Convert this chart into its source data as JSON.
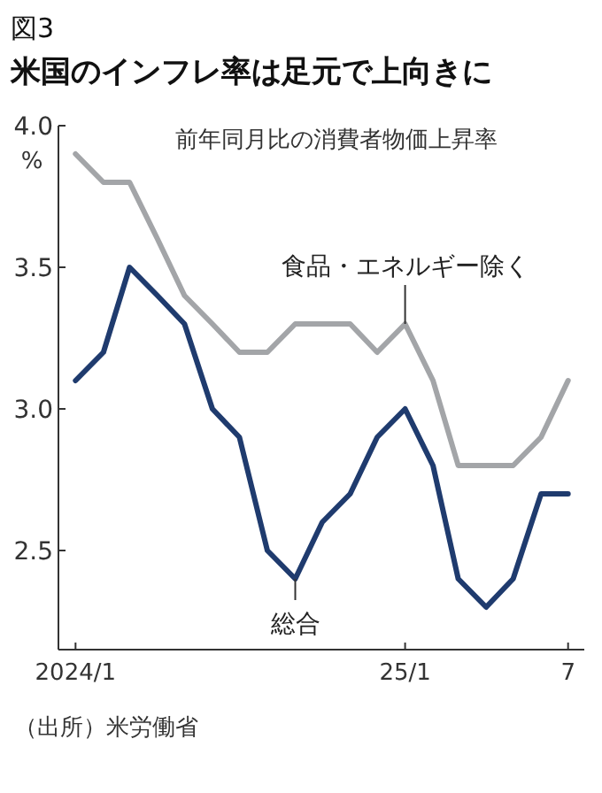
{
  "chart_data": {
    "type": "line",
    "title": "米国のインフレ率は足元で上向きに",
    "subtitle": "前年同月比の消費者物価上昇率",
    "ylabel": "%",
    "x": [
      "2024-01",
      "2024-02",
      "2024-03",
      "2024-04",
      "2024-05",
      "2024-06",
      "2024-07",
      "2024-08",
      "2024-09",
      "2024-10",
      "2024-11",
      "2024-12",
      "2025-01",
      "2025-02",
      "2025-03",
      "2025-04",
      "2025-05",
      "2025-06",
      "2025-07"
    ],
    "series": [
      {
        "color": "#1f3b6e",
        "values": [
          3.1,
          3.2,
          3.5,
          3.4,
          3.3,
          3.0,
          2.9,
          2.5,
          2.4,
          2.6,
          2.7,
          2.9,
          3.0,
          2.8,
          2.4,
          2.3,
          2.4,
          2.7,
          2.7
        ]
      },
      {
        "color": "#a3a5a8",
        "values": [
          3.9,
          3.8,
          3.8,
          3.6,
          3.4,
          3.3,
          3.2,
          3.2,
          3.3,
          3.3,
          3.3,
          3.2,
          3.3,
          3.1,
          2.8,
          2.8,
          2.8,
          2.9,
          3.1
        ]
      }
    ],
    "xlim": [
      "2023-12-13",
      "2025-07-19"
    ],
    "xticks": [
      {
        "value": "2024-01",
        "label": "2024/1"
      },
      {
        "value": "2025-01",
        "label": "25/1"
      },
      {
        "value": "2025-07",
        "label": "7"
      }
    ],
    "ylim": [
      2.15,
      4.0
    ],
    "yticks": [
      {
        "value": 2.5,
        "label": "2.5"
      },
      {
        "value": 3.0,
        "label": "3.0"
      },
      {
        "value": 3.5,
        "label": "3.5"
      },
      {
        "value": 4.0,
        "label": "4.0"
      }
    ],
    "grid": false,
    "marker": "none",
    "line_style": "solid",
    "annotations": [
      "図3",
      {
        "text": "食品・エネルギー除く",
        "x": "2025-01",
        "y": 3.3
      },
      {
        "text": "総合",
        "x": "2024-09",
        "y": 2.4
      },
      "（出所）米労働省"
    ]
  }
}
